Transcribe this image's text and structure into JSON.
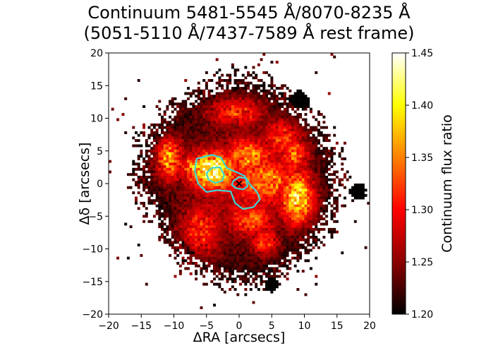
{
  "chart_data": {
    "type": "heatmap",
    "title": "Continuum 5481-5545 Å/8070-8235 Å",
    "subtitle": "(5051-5110 Å/7437-7589 Å rest frame)",
    "xlabel": "ΔRA [arcsecs]",
    "ylabel": "Δδ [arcsecs]",
    "xlim": [
      -20,
      20
    ],
    "ylim": [
      -20,
      20
    ],
    "x_ticks": [
      -20,
      -15,
      -10,
      -5,
      0,
      5,
      10,
      15,
      20
    ],
    "y_ticks": [
      -20,
      -15,
      -10,
      -5,
      0,
      5,
      10,
      15,
      20
    ],
    "grid": false,
    "colormap": "hot",
    "colorbar": {
      "label": "Continuum flux ratio",
      "range": [
        1.2,
        1.45
      ],
      "ticks": [
        1.2,
        1.25,
        1.3,
        1.35,
        1.4,
        1.45
      ],
      "tick_labels": [
        "1.20",
        "1.25",
        "1.30",
        "1.35",
        "1.40",
        "1.45"
      ],
      "colors": [
        "#000000",
        "#8b0000",
        "#ff0000",
        "#ff8000",
        "#ffff00",
        "#ffffff"
      ]
    },
    "galaxy_center": [
      0,
      0
    ],
    "contour_color": "#3fd5d5",
    "contours": [
      {
        "points": [
          [
            -6.5,
            3.8
          ],
          [
            -4.2,
            4.4
          ],
          [
            -2.8,
            4.0
          ],
          [
            -1.9,
            2.4
          ],
          [
            0.8,
            1.2
          ],
          [
            1.8,
            -0.3
          ],
          [
            2.8,
            -1.4
          ],
          [
            3.2,
            -2.4
          ],
          [
            2.2,
            -3.6
          ],
          [
            0.6,
            -3.9
          ],
          [
            -0.6,
            -3.0
          ],
          [
            -1.3,
            -1.2
          ],
          [
            -3.3,
            -1.0
          ],
          [
            -5.0,
            -1.3
          ],
          [
            -6.3,
            0.0
          ],
          [
            -6.8,
            2.0
          ]
        ]
      },
      {
        "points": [
          [
            -5.0,
            1.6
          ],
          [
            -4.2,
            2.4
          ],
          [
            -2.9,
            2.5
          ],
          [
            -2.3,
            1.3
          ],
          [
            -2.6,
            0.4
          ],
          [
            -3.7,
            0.1
          ],
          [
            -4.7,
            0.6
          ]
        ]
      },
      {
        "points": [
          [
            -0.9,
            0.4
          ],
          [
            0.0,
            1.0
          ],
          [
            1.0,
            0.8
          ],
          [
            1.3,
            -0.4
          ],
          [
            0.6,
            -0.9
          ],
          [
            -0.5,
            -0.7
          ],
          [
            -1.1,
            -0.2
          ]
        ]
      }
    ],
    "emission_blobs": [
      {
        "x": -4.2,
        "y": 2.0,
        "sx": 2.5,
        "sy": 2.0,
        "value": 1.42
      },
      {
        "x": -10.8,
        "y": 3.8,
        "sx": 1.4,
        "sy": 2.2,
        "value": 1.37
      },
      {
        "x": -6.5,
        "y": 2.5,
        "sx": 1.6,
        "sy": 1.4,
        "value": 1.36
      },
      {
        "x": 9.0,
        "y": -2.2,
        "sx": 1.8,
        "sy": 2.8,
        "value": 1.4
      },
      {
        "x": 4.5,
        "y": 0.5,
        "sx": 3.5,
        "sy": 2.5,
        "value": 1.32
      },
      {
        "x": 1.5,
        "y": 4.2,
        "sx": 2.5,
        "sy": 1.8,
        "value": 1.33
      },
      {
        "x": 6.8,
        "y": 7.0,
        "sx": 2.2,
        "sy": 2.0,
        "value": 1.31
      },
      {
        "x": -6.0,
        "y": -7.5,
        "sx": 2.2,
        "sy": 3.0,
        "value": 1.3
      },
      {
        "x": 8.5,
        "y": 4.5,
        "sx": 1.6,
        "sy": 1.8,
        "value": 1.33
      },
      {
        "x": 2.0,
        "y": -5.5,
        "sx": 2.5,
        "sy": 1.8,
        "value": 1.3
      },
      {
        "x": -0.5,
        "y": 11.0,
        "sx": 3.0,
        "sy": 1.5,
        "value": 1.31
      },
      {
        "x": 4.0,
        "y": -9.0,
        "sx": 1.5,
        "sy": 1.5,
        "value": 1.3
      },
      {
        "x": -15.5,
        "y": 8.5,
        "sx": 0.6,
        "sy": 0.5,
        "value": 1.36
      }
    ],
    "dark_sources": [
      {
        "x": 9.3,
        "y": 12.8,
        "r": 1.4
      },
      {
        "x": 18.2,
        "y": -1.2,
        "r": 1.3
      },
      {
        "x": 5.0,
        "y": -15.5,
        "r": 1.1
      }
    ]
  }
}
